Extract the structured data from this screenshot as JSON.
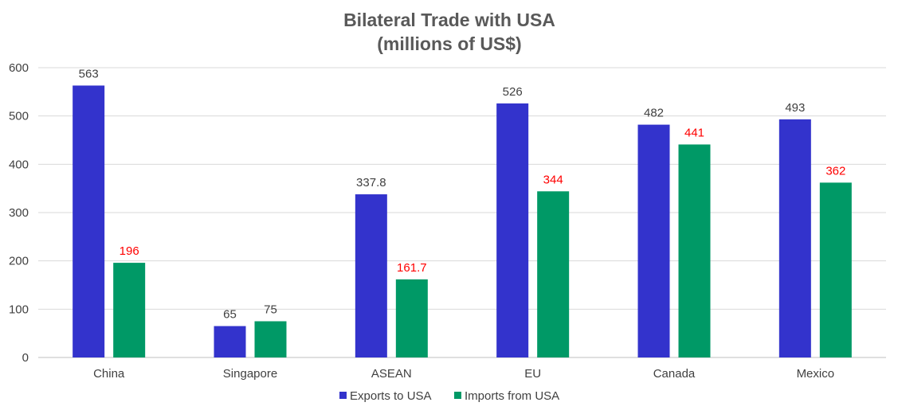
{
  "chart_data": {
    "type": "bar",
    "title": [
      "Bilateral Trade with USA",
      "(millions of US$)"
    ],
    "xlabel": "",
    "ylabel": "",
    "ylim": [
      0,
      600
    ],
    "yticks": [
      0,
      100,
      200,
      300,
      400,
      500,
      600
    ],
    "grid": true,
    "legend_position": "bottom",
    "categories": [
      "China",
      "Singapore",
      "ASEAN",
      "EU",
      "Canada",
      "Mexico"
    ],
    "series": [
      {
        "name": "Exports to USA",
        "color": "#3333cc",
        "label_color": "#404040",
        "values": [
          563,
          65,
          337.8,
          526,
          482,
          493
        ],
        "labels": [
          "563",
          "65",
          "337.8",
          "526",
          "482",
          "493"
        ]
      },
      {
        "name": "Imports from USA",
        "color": "#009966",
        "label_color": "#ff0000",
        "values": [
          196,
          75,
          161.7,
          344,
          441,
          362
        ],
        "labels": [
          "196",
          "75",
          "161.7",
          "344",
          "441",
          "362"
        ],
        "label_colors": [
          "#ff0000",
          "#404040",
          "#ff0000",
          "#ff0000",
          "#ff0000",
          "#ff0000"
        ]
      }
    ]
  }
}
